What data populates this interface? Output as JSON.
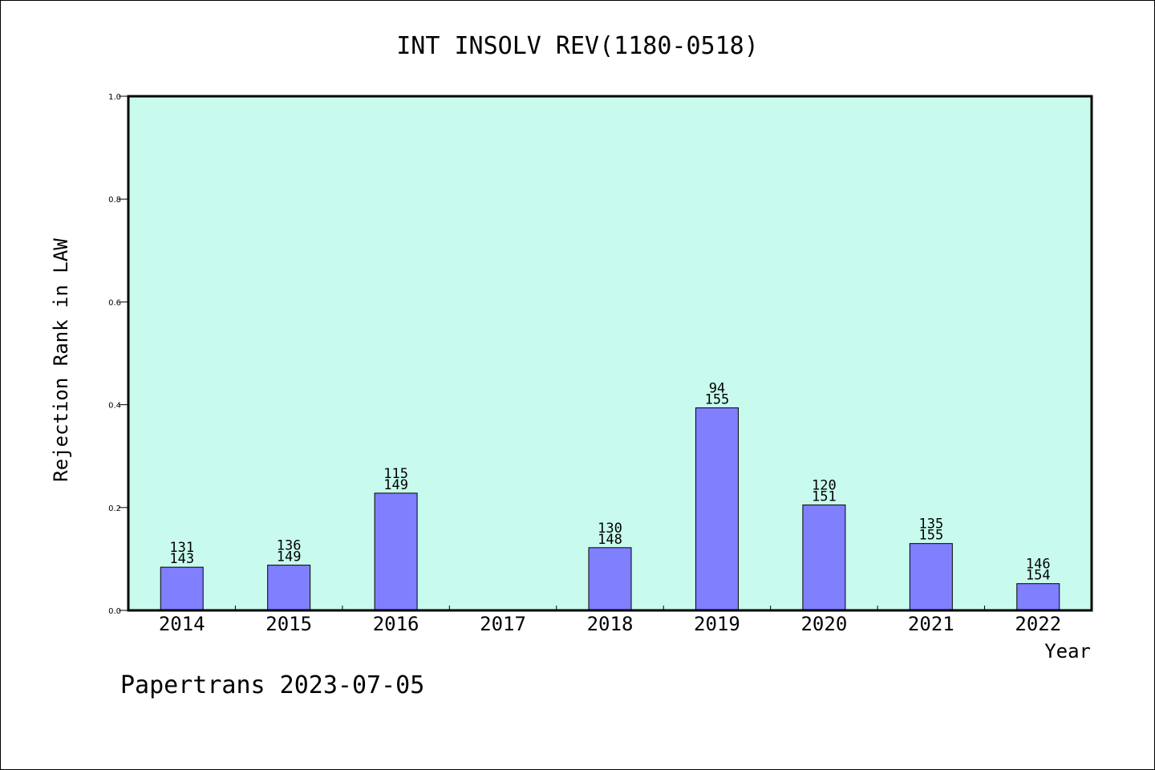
{
  "chart_data": {
    "type": "bar",
    "title": "INT INSOLV REV(1180-0518)",
    "xlabel": "Year",
    "ylabel": "Rejection Rank in LAW",
    "ylim": [
      0,
      1.0
    ],
    "yticks": [
      "0.0",
      "0.2",
      "0.4",
      "0.6",
      "0.8",
      "1.0"
    ],
    "categories": [
      "2014",
      "2015",
      "2016",
      "2017",
      "2018",
      "2019",
      "2020",
      "2021",
      "2022"
    ],
    "values": [
      0.084,
      0.088,
      0.228,
      null,
      0.122,
      0.394,
      0.205,
      0.13,
      0.052
    ],
    "label_top": [
      "131",
      "136",
      "115",
      "",
      "130",
      "94",
      "120",
      "135",
      "146"
    ],
    "label_bottom": [
      "143",
      "149",
      "149",
      "",
      "148",
      "155",
      "151",
      "155",
      "154"
    ],
    "grid": false,
    "plot_bg": "#c8fbee",
    "bar_color": "#8080ff"
  },
  "footer": "Papertrans 2023-07-05"
}
